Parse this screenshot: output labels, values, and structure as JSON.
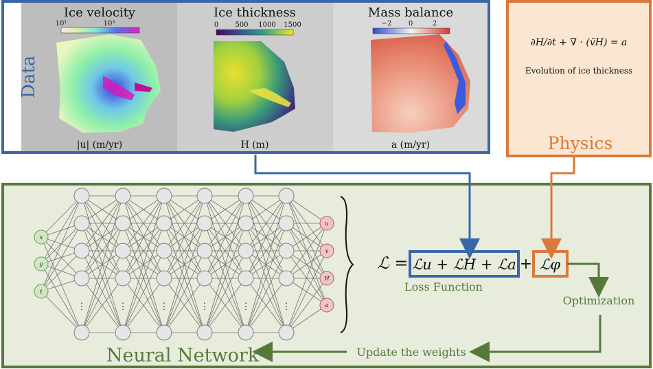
{
  "data_panel": {
    "label": "Data",
    "color": "#3a67a8",
    "maps": [
      {
        "title": "Ice velocity",
        "colorbar_ticks": [
          "10¹",
          "10³"
        ],
        "unit_label": "|u| (m/yr)"
      },
      {
        "title": "Ice thickness",
        "colorbar_ticks": [
          "0",
          "500",
          "1000",
          "1500"
        ],
        "unit_label": "H (m)"
      },
      {
        "title": "Mass balance",
        "colorbar_ticks": [
          "−2",
          "0",
          "2"
        ],
        "unit_label": "a (m/yr)"
      }
    ]
  },
  "physics_panel": {
    "label": "Physics",
    "equation": "∂H/∂t + ∇ · (v̄H) = a",
    "caption": "Evolution of ice thickness",
    "color": "#d9793b",
    "fill": "#fbe7d1"
  },
  "network_panel": {
    "label": "Neural Network",
    "color": "#56793a",
    "fill": "#e7ecdc",
    "inputs": [
      "x",
      "y",
      "t"
    ],
    "outputs": [
      "u",
      "v",
      "H",
      "a"
    ],
    "ellipsis": "⋮"
  },
  "loss": {
    "lhs": "ℒ =",
    "data_terms": "ℒu + ℒH + ℒa",
    "plus": "+",
    "physics_term": "ℒφ",
    "caption": "Loss Function"
  },
  "flow": {
    "optimization": "Optimization",
    "update": "Update the weights"
  }
}
